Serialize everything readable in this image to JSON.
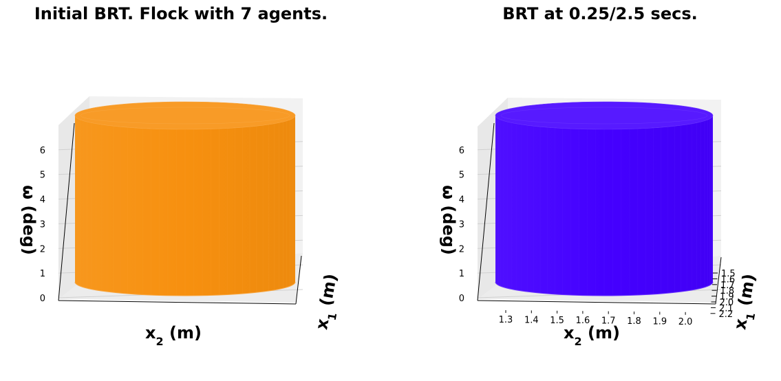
{
  "chart_data": [
    {
      "type": "surface3d",
      "title": "Initial BRT. Flock with 7 agents.",
      "xlabel": "x",
      "xlabel_sub": "2",
      "xlabel_unit": " (m)",
      "ylabel": "x",
      "ylabel_sub": "1",
      "ylabel_unit": " (m)",
      "zlabel": "ω (deg)",
      "z_ticks": [
        "0",
        "1",
        "2",
        "3",
        "4",
        "5",
        "6"
      ],
      "zlim": [
        0,
        6.3
      ],
      "x_ticks": [],
      "y_ticks": [],
      "surface_color": "#f7900f",
      "shape": "cylinder"
    },
    {
      "type": "surface3d",
      "title": "BRT at 0.25/2.5 secs.",
      "xlabel": "x",
      "xlabel_sub": "2",
      "xlabel_unit": " (m)",
      "ylabel": "x",
      "ylabel_sub": "1",
      "ylabel_unit": " (m)",
      "zlabel": "ω (deg)",
      "z_ticks": [
        "0",
        "1",
        "2",
        "3",
        "4",
        "5",
        "6"
      ],
      "zlim": [
        0,
        6.3
      ],
      "x_ticks": [
        "1.3",
        "1.4",
        "1.5",
        "1.6",
        "1.7",
        "1.8",
        "1.9",
        "2.0"
      ],
      "y_ticks": [
        "1.5",
        "1.6",
        "1.7",
        "1.8",
        "1.9",
        "2.0",
        "2.1",
        "2.2"
      ],
      "surface_color": "#4400ff",
      "shape": "cylinder"
    }
  ]
}
